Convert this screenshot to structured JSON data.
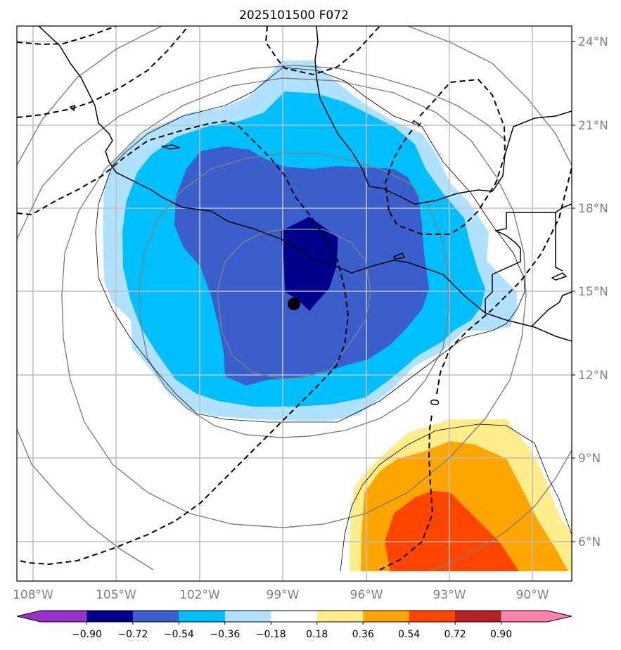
{
  "title": "2025101500 F072",
  "chart_data": {
    "type": "map-contour",
    "title": "2025101500 F072",
    "lon_range": [
      -108.6,
      -88.6
    ],
    "lat_range": [
      4.6,
      24.6
    ],
    "x_ticks": [
      {
        "value": -108,
        "label": "108°W"
      },
      {
        "value": -105,
        "label": "105°W"
      },
      {
        "value": -102,
        "label": "102°W"
      },
      {
        "value": -99,
        "label": "99°W"
      },
      {
        "value": -96,
        "label": "96°W"
      },
      {
        "value": -93,
        "label": "93°W"
      },
      {
        "value": -90,
        "label": "90°W"
      }
    ],
    "y_ticks": [
      {
        "value": 24,
        "label": "24°N"
      },
      {
        "value": 21,
        "label": "21°N"
      },
      {
        "value": 18,
        "label": "18°N"
      },
      {
        "value": 15,
        "label": "15°N"
      },
      {
        "value": 12,
        "label": "12°N"
      },
      {
        "value": 9,
        "label": "9°N"
      },
      {
        "value": 6,
        "label": "6°N"
      }
    ],
    "grid": true,
    "center_marker": {
      "lon": -98.6,
      "lat": 14.6
    },
    "contour_labels": [
      {
        "text": "1",
        "lon": -94.9,
        "lat": 20.9
      },
      {
        "text": "0",
        "lon": -94.4,
        "lat": 10.5
      }
    ],
    "colorbar": {
      "orientation": "horizontal",
      "location": "bottom",
      "extend": "both",
      "levels": [
        -0.9,
        -0.72,
        -0.54,
        -0.36,
        -0.18,
        0.18,
        0.36,
        0.54,
        0.72,
        0.9
      ],
      "tick_labels": [
        "−0.90",
        "−0.72",
        "−0.54",
        "−0.36",
        "−0.18",
        "0.18",
        "0.36",
        "0.54",
        "0.72",
        "0.90"
      ],
      "colors": [
        "#9932cc",
        "#00008b",
        "#3a5fcd",
        "#00bfff",
        "#b0e2ff",
        "#ffffff",
        "#ffec8b",
        "#ffa500",
        "#ff4500",
        "#b22222",
        "#ff82ab"
      ]
    },
    "fill_regions": [
      {
        "level_min": -0.36,
        "level_max": -0.18,
        "color": "#b0e2ff"
      },
      {
        "level_min": -0.54,
        "level_max": -0.36,
        "color": "#00bfff"
      },
      {
        "level_min": -0.72,
        "level_max": -0.54,
        "color": "#3a5fcd"
      },
      {
        "level_min": -0.9,
        "level_max": -0.72,
        "color": "#00008b"
      },
      {
        "level_min": 0.18,
        "level_max": 0.36,
        "color": "#ffec8b"
      },
      {
        "level_min": 0.36,
        "level_max": 0.54,
        "color": "#ffa500"
      },
      {
        "level_min": 0.54,
        "level_max": 0.72,
        "color": "#ff4500"
      }
    ]
  }
}
